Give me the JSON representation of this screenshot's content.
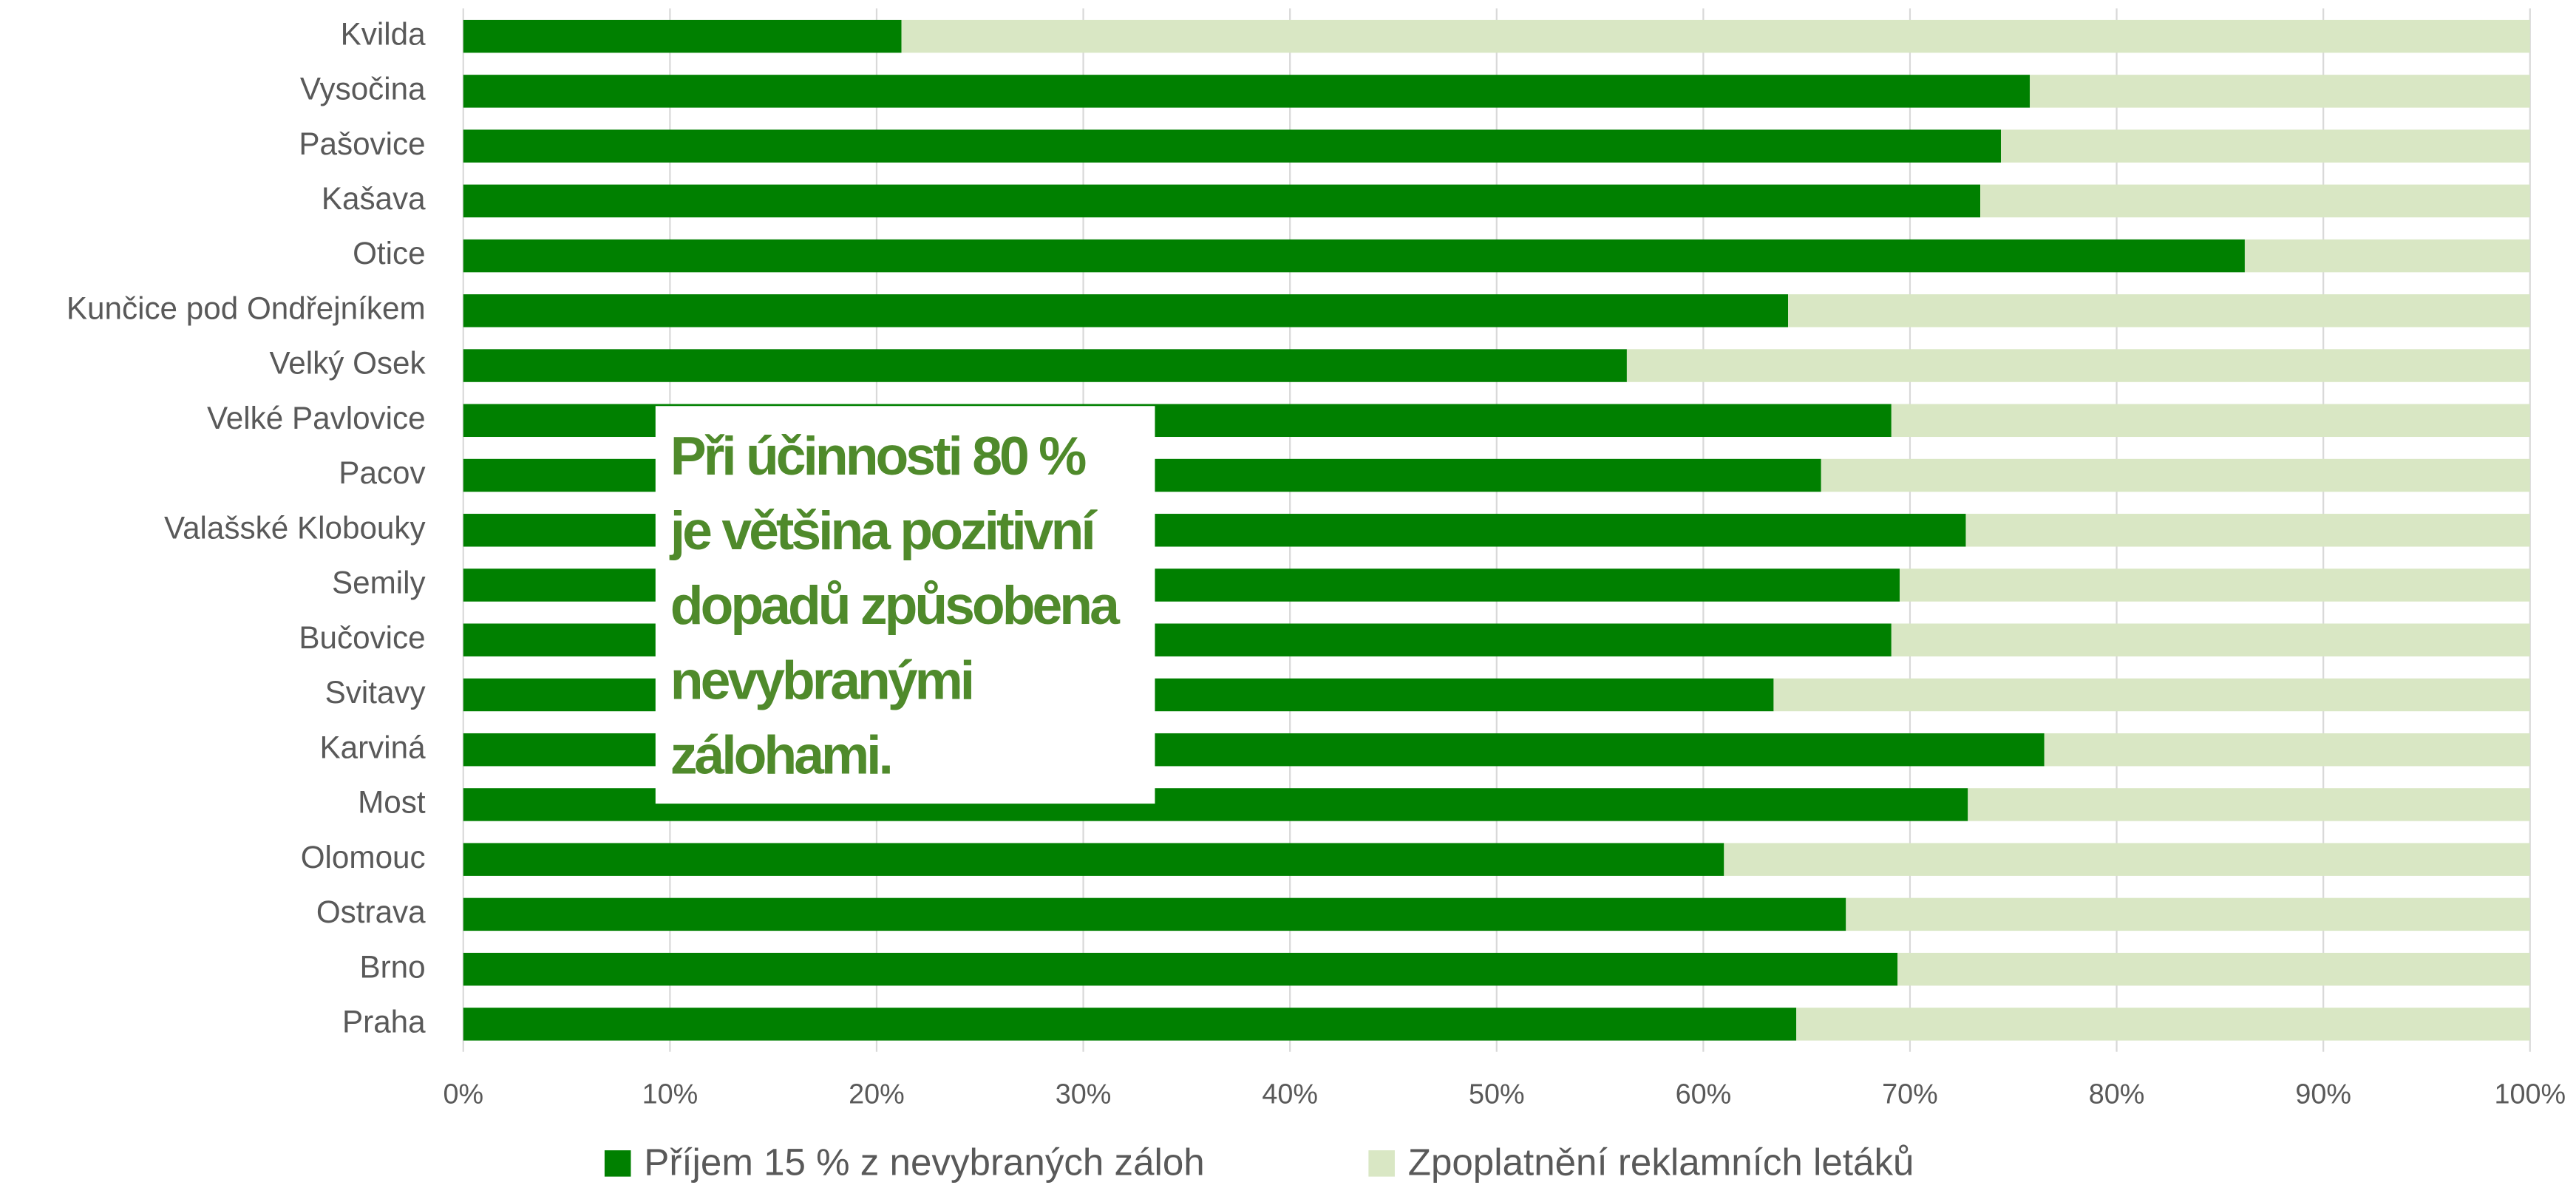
{
  "chart_data": {
    "type": "stacked-barh",
    "categories": [
      "Kvilda",
      "Vysočina",
      "Pašovice",
      "Kašava",
      "Otice",
      "Kunčice pod Ondřejníkem",
      "Velký Osek",
      "Velké Pavlovice",
      "Pacov",
      "Valašské Klobouky",
      "Semily",
      "Bučovice",
      "Svitavy",
      "Karviná",
      "Most",
      "Olomouc",
      "Ostrava",
      "Brno",
      "Praha"
    ],
    "series": [
      {
        "name": "Příjem 15 % z nevybraných záloh",
        "color": "#008000",
        "values": [
          21.2,
          75.8,
          74.4,
          73.4,
          86.2,
          64.1,
          56.3,
          69.1,
          65.7,
          72.7,
          69.5,
          69.1,
          63.4,
          76.5,
          72.8,
          61.0,
          66.9,
          69.4,
          64.5
        ]
      },
      {
        "name": "Zpoplatnění reklamních letáků",
        "color": "#d9e7c4",
        "values": [
          78.8,
          24.2,
          25.6,
          26.6,
          13.8,
          35.9,
          43.7,
          30.9,
          34.3,
          27.3,
          30.5,
          30.9,
          36.6,
          23.5,
          27.2,
          39.0,
          33.1,
          30.6,
          35.5
        ]
      }
    ],
    "xlim": [
      0,
      100
    ],
    "xticks": [
      {
        "value": 0,
        "label": "0%"
      },
      {
        "value": 10,
        "label": "10%"
      },
      {
        "value": 20,
        "label": "20%"
      },
      {
        "value": 30,
        "label": "30%"
      },
      {
        "value": 40,
        "label": "40%"
      },
      {
        "value": 50,
        "label": "50%"
      },
      {
        "value": 60,
        "label": "60%"
      },
      {
        "value": 70,
        "label": "70%"
      },
      {
        "value": 80,
        "label": "80%"
      },
      {
        "value": 90,
        "label": "90%"
      },
      {
        "value": 100,
        "label": "100%"
      }
    ],
    "grid": true,
    "legend": "bottom",
    "annotation": [
      "Při účinnosti 80 %",
      "je většina pozitivní",
      "dopadů způsobena",
      "nevybranými",
      "zálohami."
    ]
  }
}
